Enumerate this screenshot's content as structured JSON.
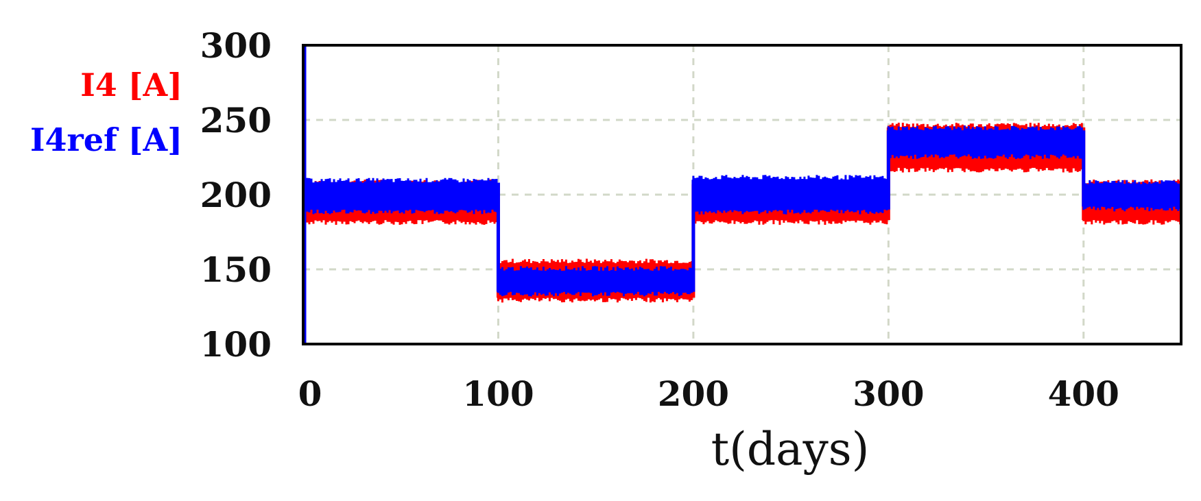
{
  "chart_data": {
    "type": "line",
    "xlabel": "t(days)",
    "ylabel": "",
    "xlim": [
      0,
      450
    ],
    "ylim": [
      100,
      300
    ],
    "x_ticks": [
      "0",
      "100",
      "200",
      "300",
      "400"
    ],
    "y_ticks": [
      "300",
      "250",
      "200",
      "150",
      "100"
    ],
    "grid": true,
    "legend_position": "left",
    "series": [
      {
        "name": "I4 [A]",
        "color": "#ff0000",
        "segments": [
          {
            "x_start": 0,
            "x_end": 100,
            "y_low": 183,
            "y_high": 207
          },
          {
            "x_start": 100,
            "x_end": 200,
            "y_low": 131,
            "y_high": 154
          },
          {
            "x_start": 200,
            "x_end": 300,
            "y_low": 183,
            "y_high": 207
          },
          {
            "x_start": 300,
            "x_end": 400,
            "y_low": 218,
            "y_high": 245
          },
          {
            "x_start": 400,
            "x_end": 450,
            "y_low": 183,
            "y_high": 207
          }
        ]
      },
      {
        "name": "I4ref [A]",
        "color": "#0000ff",
        "segments": [
          {
            "x_start": 0,
            "x_end": 100,
            "y_low": 190,
            "y_high": 208
          },
          {
            "x_start": 100,
            "x_end": 200,
            "y_low": 135,
            "y_high": 149
          },
          {
            "x_start": 200,
            "x_end": 300,
            "y_low": 190,
            "y_high": 210
          },
          {
            "x_start": 300,
            "x_end": 400,
            "y_low": 227,
            "y_high": 243
          },
          {
            "x_start": 400,
            "x_end": 450,
            "y_low": 192,
            "y_high": 207
          }
        ]
      }
    ]
  }
}
